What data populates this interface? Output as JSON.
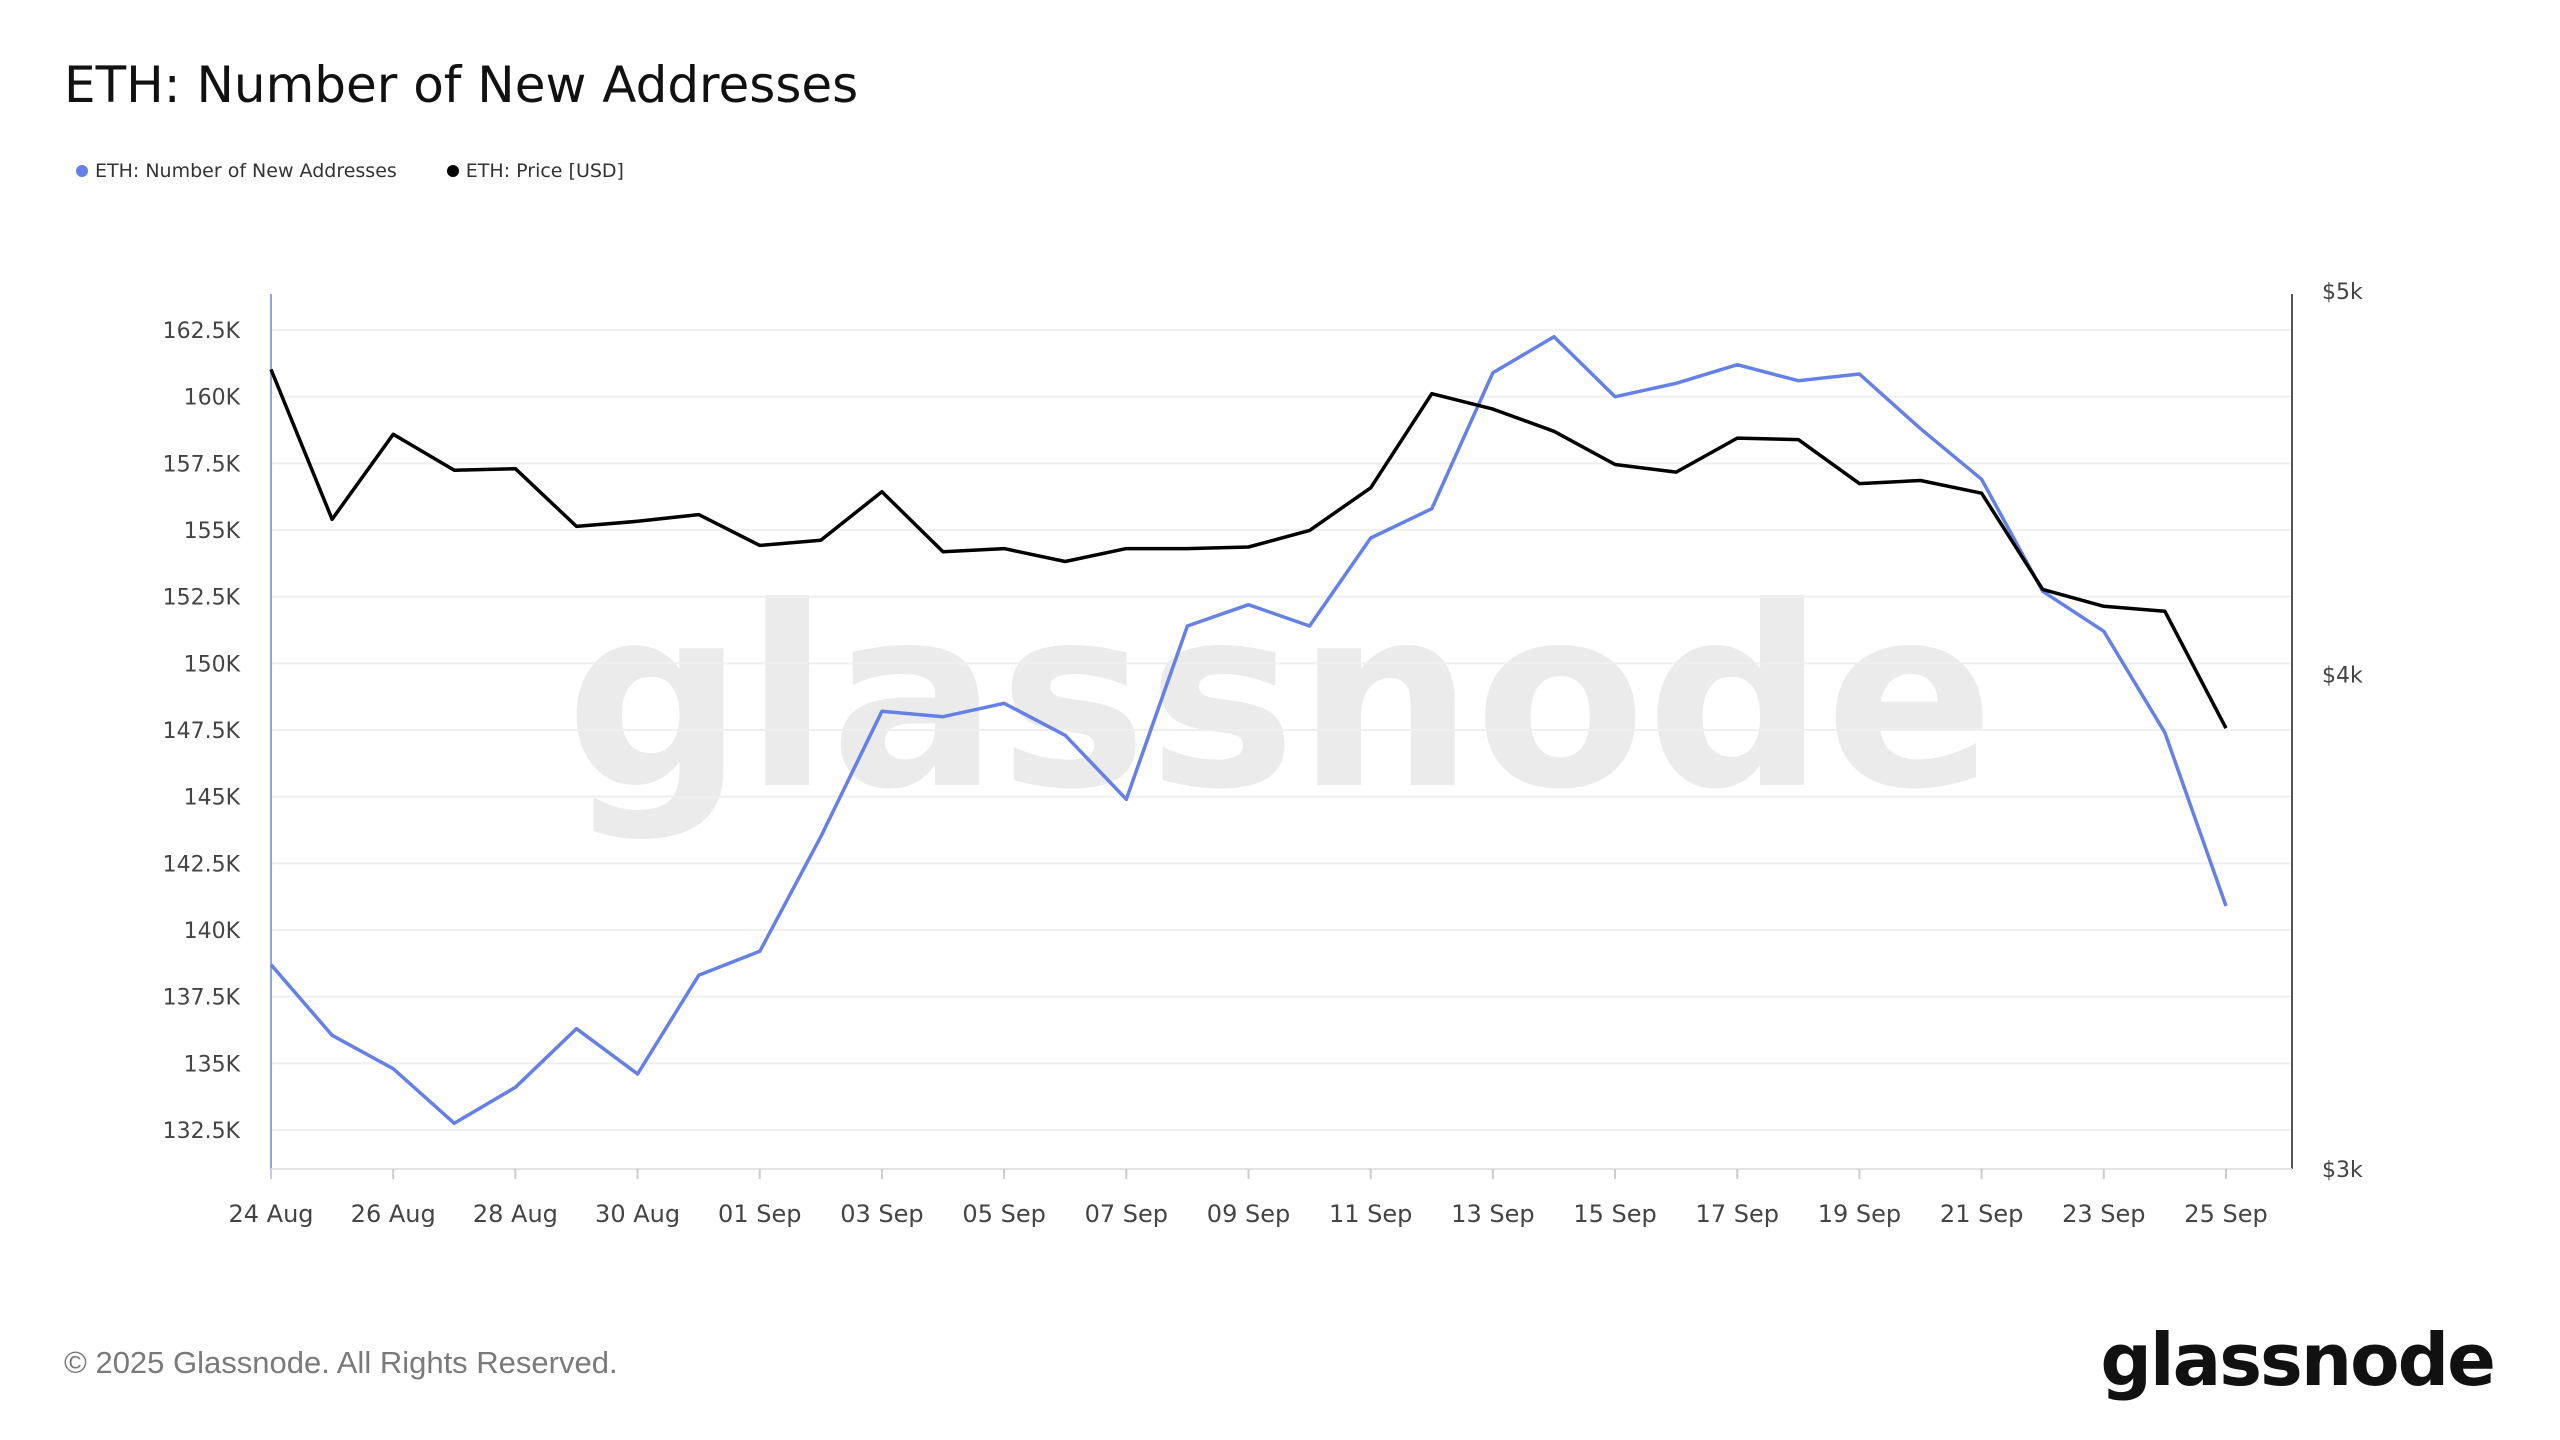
{
  "chart_data": {
    "type": "line",
    "title": "ETH: Number of New Addresses",
    "legend_position": "top-left",
    "grid": true,
    "watermark": "glassnode",
    "x": [
      "2025-08-24",
      "2025-08-25",
      "2025-08-26",
      "2025-08-27",
      "2025-08-28",
      "2025-08-29",
      "2025-08-30",
      "2025-08-31",
      "2025-09-01",
      "2025-09-02",
      "2025-09-03",
      "2025-09-04",
      "2025-09-05",
      "2025-09-06",
      "2025-09-07",
      "2025-09-08",
      "2025-09-09",
      "2025-09-10",
      "2025-09-11",
      "2025-09-12",
      "2025-09-13",
      "2025-09-14",
      "2025-09-15",
      "2025-09-16",
      "2025-09-17",
      "2025-09-18",
      "2025-09-19",
      "2025-09-20",
      "2025-09-21",
      "2025-09-22",
      "2025-09-23",
      "2025-09-24",
      "2025-09-25"
    ],
    "x_ticks": [
      "24 Aug",
      "26 Aug",
      "28 Aug",
      "30 Aug",
      "01 Sep",
      "03 Sep",
      "05 Sep",
      "07 Sep",
      "09 Sep",
      "11 Sep",
      "13 Sep",
      "15 Sep",
      "17 Sep",
      "19 Sep",
      "21 Sep",
      "23 Sep",
      "25 Sep"
    ],
    "y_left": {
      "ticks": [
        162500,
        160000,
        157500,
        155000,
        152500,
        150000,
        147500,
        145000,
        142500,
        140000,
        137500,
        135000,
        132500
      ],
      "tick_labels": [
        "162.5K",
        "160K",
        "157.5K",
        "155K",
        "152.5K",
        "150K",
        "147.5K",
        "145K",
        "142.5K",
        "140K",
        "137.5K",
        "135K",
        "132.5K"
      ],
      "range": [
        131000,
        163700
      ]
    },
    "y_right": {
      "scale": "log",
      "ticks": [
        5000,
        4000,
        3000
      ],
      "tick_labels": [
        "$5k",
        "$4k",
        "$3k"
      ],
      "range": [
        3000,
        5000
      ]
    },
    "series": [
      {
        "name": "ETH: Number of New Addresses",
        "axis": "left",
        "color": "#6580e6",
        "values": [
          138700,
          136050,
          134800,
          132750,
          134100,
          136300,
          134600,
          138300,
          139200,
          143500,
          148200,
          148000,
          148500,
          147300,
          144900,
          151400,
          152200,
          151400,
          154700,
          155800,
          160900,
          162250,
          160000,
          160500,
          161200,
          160600,
          160850,
          158800,
          156900,
          152700,
          151200,
          147400,
          140900
        ]
      },
      {
        "name": "ETH: Price [USD]",
        "axis": "right",
        "color": "#000000",
        "values": [
          4777,
          4378,
          4600,
          4505,
          4509,
          4360,
          4373,
          4390,
          4312,
          4325,
          4449,
          4296,
          4304,
          4272,
          4304,
          4304,
          4308,
          4350,
          4459,
          4710,
          4668,
          4608,
          4520,
          4500,
          4590,
          4586,
          4470,
          4478,
          4445,
          4203,
          4162,
          4150,
          3877
        ]
      }
    ]
  },
  "footer": {
    "copyright": "© 2025 Glassnode. All Rights Reserved.",
    "logo": "glassnode"
  }
}
